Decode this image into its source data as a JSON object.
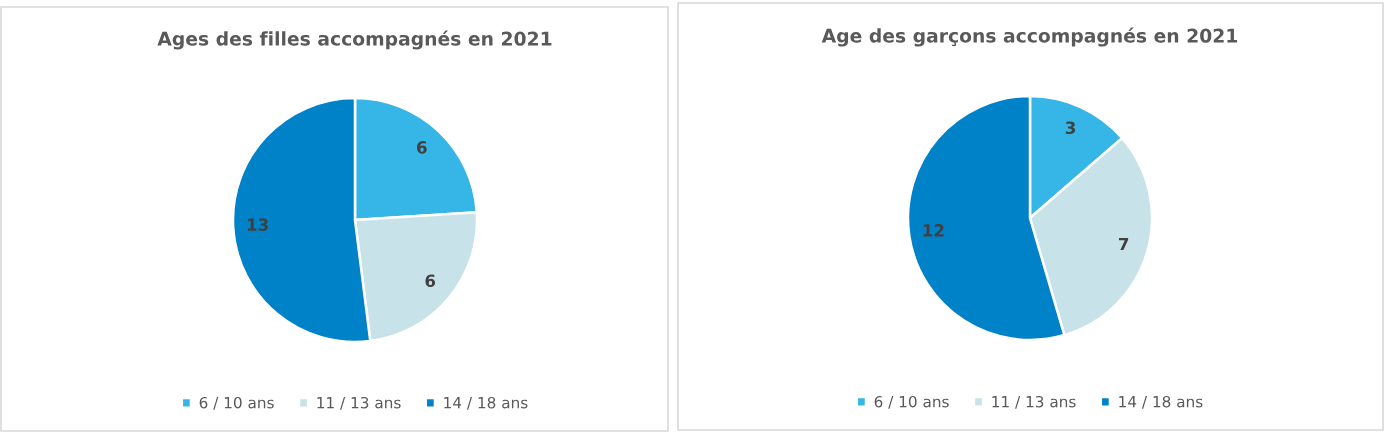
{
  "chart_data": [
    {
      "type": "pie",
      "title": "Ages des filles accompagnés en 2021",
      "categories": [
        "6 / 10 ans",
        "11 / 13 ans",
        "14 / 18 ans"
      ],
      "values": [
        6,
        6,
        13
      ],
      "colors": [
        "#36b6e6",
        "#c8e2ea",
        "#0082c8"
      ],
      "data_labels": true,
      "legend": "bottom"
    },
    {
      "type": "pie",
      "title": "Age des garçons accompagnés en 2021",
      "categories": [
        "6 / 10 ans",
        "11 / 13 ans",
        "14 / 18 ans"
      ],
      "values": [
        3,
        7,
        12
      ],
      "colors": [
        "#36b6e6",
        "#c8e2ea",
        "#0082c8"
      ],
      "data_labels": true,
      "legend": "bottom"
    }
  ]
}
